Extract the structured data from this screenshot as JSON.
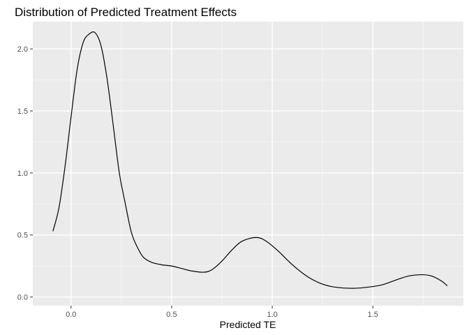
{
  "chart_data": {
    "type": "line",
    "title": "Distribution of Predicted Treatment Effects",
    "xlabel": "Predicted TE",
    "ylabel": "",
    "xlim": [
      -0.19,
      1.95
    ],
    "ylim": [
      -0.07,
      2.22
    ],
    "x_ticks": [
      0.0,
      0.5,
      1.0,
      1.5
    ],
    "x_tick_labels": [
      "0.0",
      "0.5",
      "1.0",
      "1.5"
    ],
    "y_ticks": [
      0.0,
      0.5,
      1.0,
      1.5,
      2.0
    ],
    "y_tick_labels": [
      "0.0",
      "0.5",
      "1.0",
      "1.5",
      "2.0"
    ],
    "grid": true,
    "theme": "grey panel background, white grid lines",
    "series": [
      {
        "color": "#000000",
        "x": [
          -0.09,
          -0.06,
          -0.03,
          0.0,
          0.03,
          0.06,
          0.09,
          0.12,
          0.15,
          0.18,
          0.21,
          0.24,
          0.27,
          0.3,
          0.33,
          0.36,
          0.4,
          0.45,
          0.5,
          0.55,
          0.6,
          0.66,
          0.7,
          0.75,
          0.8,
          0.85,
          0.92,
          0.97,
          1.03,
          1.1,
          1.17,
          1.24,
          1.31,
          1.4,
          1.48,
          1.55,
          1.62,
          1.68,
          1.74,
          1.79,
          1.84,
          1.87
        ],
        "y": [
          0.53,
          0.72,
          1.05,
          1.45,
          1.83,
          2.05,
          2.12,
          2.13,
          2.02,
          1.75,
          1.38,
          1.0,
          0.75,
          0.52,
          0.4,
          0.32,
          0.28,
          0.26,
          0.25,
          0.23,
          0.21,
          0.2,
          0.22,
          0.29,
          0.38,
          0.45,
          0.48,
          0.45,
          0.37,
          0.26,
          0.17,
          0.11,
          0.08,
          0.07,
          0.08,
          0.1,
          0.14,
          0.17,
          0.18,
          0.17,
          0.13,
          0.09
        ]
      }
    ]
  }
}
